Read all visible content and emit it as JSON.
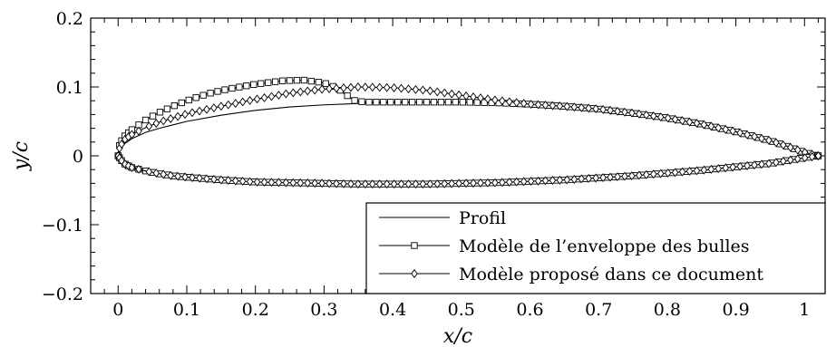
{
  "chart_data": {
    "type": "line",
    "xlabel": "x/c",
    "ylabel": "y/c",
    "xlim": [
      -0.04,
      1.03
    ],
    "ylim": [
      -0.2,
      0.2
    ],
    "xticks": [
      0,
      0.1,
      0.2,
      0.3,
      0.4,
      0.5,
      0.6,
      0.7,
      0.8,
      0.9,
      1
    ],
    "yticks": [
      -0.2,
      -0.1,
      0,
      0.1,
      0.2
    ],
    "xtick_labels": [
      "0",
      "0.1",
      "0.2",
      "0.3",
      "0.4",
      "0.5",
      "0.6",
      "0.7",
      "0.8",
      "0.9",
      "1"
    ],
    "ytick_labels": [
      "−0.2",
      "−0.1",
      "0",
      "0.1",
      "0.2"
    ],
    "grid": false,
    "legend_position": "bottom-right",
    "colors": {
      "line": "#000000",
      "background": "#ffffff"
    },
    "series": [
      {
        "name": "Profil",
        "marker": "none",
        "upper": [
          [
            0,
            0
          ],
          [
            0.005,
            0.012
          ],
          [
            0.01,
            0.018
          ],
          [
            0.02,
            0.025
          ],
          [
            0.04,
            0.034
          ],
          [
            0.06,
            0.04
          ],
          [
            0.08,
            0.045
          ],
          [
            0.1,
            0.05
          ],
          [
            0.15,
            0.059
          ],
          [
            0.2,
            0.066
          ],
          [
            0.25,
            0.071
          ],
          [
            0.3,
            0.074
          ],
          [
            0.35,
            0.076
          ],
          [
            0.4,
            0.077
          ],
          [
            0.45,
            0.078
          ],
          [
            0.5,
            0.078
          ],
          [
            0.55,
            0.077
          ],
          [
            0.6,
            0.075
          ],
          [
            0.65,
            0.072
          ],
          [
            0.7,
            0.068
          ],
          [
            0.75,
            0.062
          ],
          [
            0.8,
            0.055
          ],
          [
            0.85,
            0.046
          ],
          [
            0.9,
            0.035
          ],
          [
            0.95,
            0.022
          ],
          [
            0.98,
            0.012
          ],
          [
            1.0,
            0.005
          ],
          [
            1.02,
            0.0
          ]
        ],
        "lower": [
          [
            0,
            0
          ],
          [
            0.005,
            -0.007
          ],
          [
            0.01,
            -0.012
          ],
          [
            0.02,
            -0.017
          ],
          [
            0.04,
            -0.022
          ],
          [
            0.06,
            -0.026
          ],
          [
            0.08,
            -0.029
          ],
          [
            0.1,
            -0.031
          ],
          [
            0.15,
            -0.035
          ],
          [
            0.2,
            -0.038
          ],
          [
            0.25,
            -0.039
          ],
          [
            0.3,
            -0.04
          ],
          [
            0.35,
            -0.041
          ],
          [
            0.4,
            -0.041
          ],
          [
            0.45,
            -0.041
          ],
          [
            0.5,
            -0.04
          ],
          [
            0.55,
            -0.039
          ],
          [
            0.6,
            -0.037
          ],
          [
            0.65,
            -0.035
          ],
          [
            0.7,
            -0.032
          ],
          [
            0.75,
            -0.029
          ],
          [
            0.8,
            -0.025
          ],
          [
            0.85,
            -0.021
          ],
          [
            0.9,
            -0.016
          ],
          [
            0.95,
            -0.011
          ],
          [
            0.98,
            -0.006
          ],
          [
            1.0,
            -0.003
          ],
          [
            1.02,
            0.0
          ]
        ]
      },
      {
        "name": "Modèle de l’enveloppe des bulles",
        "marker": "square",
        "upper": [
          [
            0,
            0.0
          ],
          [
            0.002,
            0.015
          ],
          [
            0.005,
            0.022
          ],
          [
            0.01,
            0.029
          ],
          [
            0.02,
            0.038
          ],
          [
            0.04,
            0.052
          ],
          [
            0.06,
            0.063
          ],
          [
            0.08,
            0.072
          ],
          [
            0.1,
            0.08
          ],
          [
            0.13,
            0.09
          ],
          [
            0.16,
            0.097
          ],
          [
            0.2,
            0.104
          ],
          [
            0.24,
            0.109
          ],
          [
            0.27,
            0.11
          ],
          [
            0.3,
            0.106
          ],
          [
            0.32,
            0.098
          ],
          [
            0.33,
            0.09
          ],
          [
            0.345,
            0.08
          ],
          [
            0.36,
            0.078
          ],
          [
            0.4,
            0.078
          ],
          [
            0.45,
            0.078
          ],
          [
            0.5,
            0.078
          ],
          [
            0.55,
            0.077
          ],
          [
            0.6,
            0.075
          ],
          [
            0.65,
            0.072
          ],
          [
            0.7,
            0.068
          ],
          [
            0.75,
            0.062
          ],
          [
            0.8,
            0.055
          ],
          [
            0.85,
            0.046
          ],
          [
            0.9,
            0.035
          ],
          [
            0.95,
            0.022
          ],
          [
            0.98,
            0.012
          ],
          [
            1.0,
            0.005
          ],
          [
            1.02,
            0.0
          ]
        ],
        "lower": [
          [
            0,
            0.0
          ],
          [
            0.005,
            -0.007
          ],
          [
            0.01,
            -0.012
          ],
          [
            0.02,
            -0.017
          ],
          [
            0.04,
            -0.022
          ],
          [
            0.06,
            -0.026
          ],
          [
            0.08,
            -0.029
          ],
          [
            0.1,
            -0.031
          ],
          [
            0.15,
            -0.035
          ],
          [
            0.2,
            -0.038
          ],
          [
            0.25,
            -0.039
          ],
          [
            0.3,
            -0.04
          ],
          [
            0.35,
            -0.041
          ],
          [
            0.4,
            -0.041
          ],
          [
            0.45,
            -0.041
          ],
          [
            0.5,
            -0.04
          ],
          [
            0.55,
            -0.039
          ],
          [
            0.6,
            -0.037
          ],
          [
            0.65,
            -0.035
          ],
          [
            0.7,
            -0.032
          ],
          [
            0.75,
            -0.029
          ],
          [
            0.8,
            -0.025
          ],
          [
            0.85,
            -0.021
          ],
          [
            0.9,
            -0.016
          ],
          [
            0.95,
            -0.011
          ],
          [
            0.98,
            -0.006
          ],
          [
            1.0,
            -0.003
          ],
          [
            1.02,
            0.0
          ]
        ]
      },
      {
        "name": "Modèle proposé dans ce document",
        "marker": "diamond",
        "upper": [
          [
            0,
            0.0
          ],
          [
            0.002,
            0.011
          ],
          [
            0.005,
            0.017
          ],
          [
            0.01,
            0.024
          ],
          [
            0.02,
            0.031
          ],
          [
            0.04,
            0.041
          ],
          [
            0.06,
            0.049
          ],
          [
            0.08,
            0.055
          ],
          [
            0.1,
            0.061
          ],
          [
            0.15,
            0.072
          ],
          [
            0.2,
            0.082
          ],
          [
            0.25,
            0.091
          ],
          [
            0.3,
            0.097
          ],
          [
            0.35,
            0.1
          ],
          [
            0.4,
            0.099
          ],
          [
            0.45,
            0.095
          ],
          [
            0.5,
            0.088
          ],
          [
            0.55,
            0.081
          ],
          [
            0.6,
            0.075
          ],
          [
            0.65,
            0.072
          ],
          [
            0.7,
            0.068
          ],
          [
            0.75,
            0.062
          ],
          [
            0.8,
            0.055
          ],
          [
            0.85,
            0.046
          ],
          [
            0.9,
            0.035
          ],
          [
            0.95,
            0.022
          ],
          [
            0.98,
            0.012
          ],
          [
            1.0,
            0.005
          ],
          [
            1.02,
            0.0
          ]
        ],
        "lower": [
          [
            0,
            0.0
          ],
          [
            0.005,
            -0.007
          ],
          [
            0.01,
            -0.012
          ],
          [
            0.02,
            -0.017
          ],
          [
            0.04,
            -0.022
          ],
          [
            0.06,
            -0.026
          ],
          [
            0.08,
            -0.029
          ],
          [
            0.1,
            -0.031
          ],
          [
            0.15,
            -0.035
          ],
          [
            0.2,
            -0.038
          ],
          [
            0.25,
            -0.039
          ],
          [
            0.3,
            -0.04
          ],
          [
            0.35,
            -0.041
          ],
          [
            0.4,
            -0.041
          ],
          [
            0.45,
            -0.041
          ],
          [
            0.5,
            -0.04
          ],
          [
            0.55,
            -0.039
          ],
          [
            0.6,
            -0.037
          ],
          [
            0.65,
            -0.035
          ],
          [
            0.7,
            -0.032
          ],
          [
            0.75,
            -0.029
          ],
          [
            0.8,
            -0.025
          ],
          [
            0.85,
            -0.021
          ],
          [
            0.9,
            -0.016
          ],
          [
            0.95,
            -0.011
          ],
          [
            0.98,
            -0.006
          ],
          [
            1.0,
            -0.003
          ],
          [
            1.02,
            0.0
          ]
        ]
      }
    ]
  }
}
